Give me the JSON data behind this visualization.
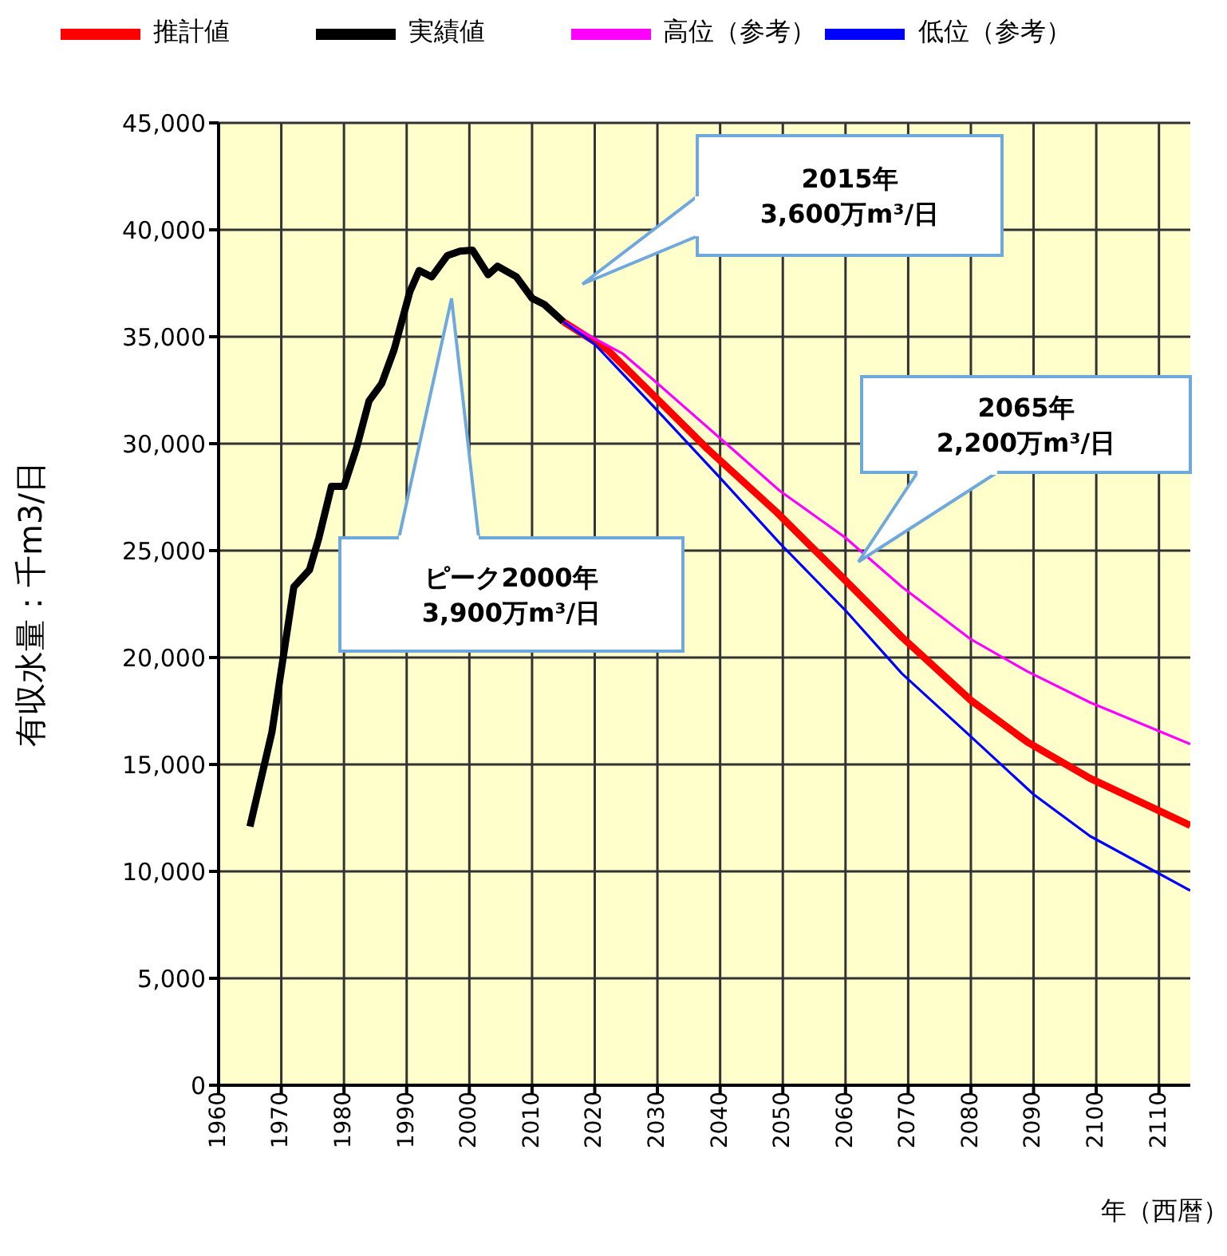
{
  "chart_data": {
    "type": "line",
    "xlabel": "年（西暦）",
    "ylabel": "有収水量：千m3/日",
    "xlim": [
      1960,
      2115
    ],
    "xticks": [
      1960,
      1970,
      1980,
      1990,
      2000,
      2010,
      2020,
      2030,
      2040,
      2050,
      2060,
      2070,
      2080,
      2090,
      2100,
      2110
    ],
    "ylim": [
      0,
      45000
    ],
    "yticks": [
      0,
      {
        "value": 5000,
        "label": "5,000"
      },
      {
        "value": 10000,
        "label": "10,000"
      },
      {
        "value": 15000,
        "label": "15,000"
      },
      {
        "value": 20000,
        "label": "20,000"
      },
      {
        "value": 25000,
        "label": "25,000"
      },
      {
        "value": 30000,
        "label": "30,000"
      },
      {
        "value": 35000,
        "label": "35,000"
      },
      {
        "value": 40000,
        "label": "40,000"
      },
      {
        "value": 45000,
        "label": "45,000"
      }
    ],
    "grid": true,
    "legend": "top",
    "line_style": "solid",
    "marker": "none",
    "series": [
      {
        "name": "推計値",
        "color": "#ff0000",
        "x": [
          2015,
          2022,
          2038,
          2049,
          2060,
          2069,
          2080,
          2089,
          2099,
          2115
        ],
        "values": [
          35700,
          34400,
          29750,
          26800,
          23600,
          20950,
          18000,
          16050,
          14350,
          12150
        ]
      },
      {
        "name": "実績値",
        "color": "#000000",
        "x": [
          1965,
          1968.5,
          1972,
          1974.5,
          1976,
          1978,
          1980,
          1982,
          1984,
          1986,
          1988,
          1990.5,
          1992,
          1994,
          1996.5,
          1998.5,
          2000.5,
          2003,
          2004.5,
          2007.5,
          2010,
          2012,
          2015
        ],
        "values": [
          12100,
          16500,
          23300,
          24100,
          25600,
          28000,
          28000,
          29800,
          32000,
          32800,
          34400,
          37100,
          38100,
          37800,
          38800,
          39000,
          39050,
          37900,
          38300,
          37800,
          36800,
          36500,
          35700
        ]
      },
      {
        "name": "高位（参考）",
        "color": "#ff00ff",
        "x": [
          2015,
          2024.5,
          2029.5,
          2040,
          2049.5,
          2060,
          2069,
          2080,
          2089,
          2099,
          2115
        ],
        "values": [
          35700,
          34200,
          32950,
          30250,
          27800,
          25600,
          23300,
          20850,
          19350,
          17900,
          15950
        ]
      },
      {
        "name": "低位（参考）",
        "color": "#0000ff",
        "x": [
          2015,
          2020,
          2029.5,
          2040,
          2049.5,
          2060,
          2069,
          2080,
          2090,
          2099,
          2115
        ],
        "values": [
          35700,
          34650,
          31700,
          28400,
          25350,
          22200,
          19250,
          16300,
          13600,
          11650,
          9100
        ]
      }
    ],
    "annotations": [
      "2015年\n3,600万m³/日",
      "ピーク2000年\n3,900万m³/日",
      "2065年\n2,200万m³/日"
    ]
  }
}
